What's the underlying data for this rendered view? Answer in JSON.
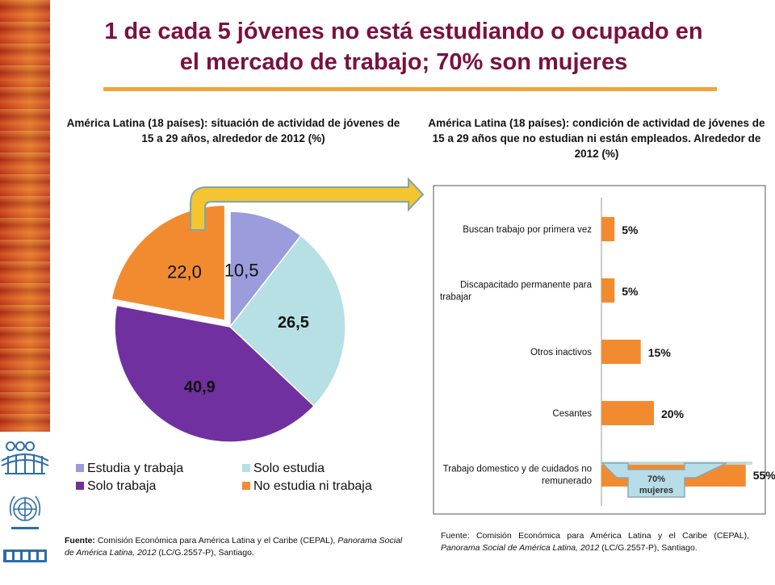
{
  "title_line1": "1 de cada 5 jóvenes no está estudiando o ocupado en",
  "title_line2": "el mercado de trabajo; 70% son mujeres",
  "colors": {
    "title": "#7b1040",
    "accent_rule": "#f3a23e",
    "pie_estudia_trabaja": "#9b9cdc",
    "pie_solo_estudia": "#b7e0e4",
    "pie_solo_trabaja": "#7030a0",
    "pie_no_estudia_ni_trabaja": "#f28b30",
    "bars": "#f28b30",
    "arrow": "#f4c431",
    "badge": "#b7dde8"
  },
  "left_subtitle": "América Latina (18 países): situación de actividad de jóvenes de 15 a 29 años, alrededor de 2012 (%)",
  "right_subtitle": "América Latina (18 países): condición de actividad de jóvenes de 15 a 29 años que no estudian ni están empleados. Alrededor de 2012  (%)",
  "badge_line1": "70%",
  "badge_line2": "mujeres",
  "left_source": {
    "label": "Fuente:",
    "text1": " Comisión Económica para América Latina y el Caribe (CEPAL), ",
    "italic": "Panorama Social de América Latina, 2012",
    "text2": " (LC/G.2557-P), Santiago."
  },
  "right_source": {
    "text1": "Fuente: Comisión Económica para América Latina y el Caribe (CEPAL), ",
    "italic": "Panorama Social de América Latina, 2012",
    "text2": " (LC/G.2557-P), Santiago."
  },
  "chart_data": [
    {
      "type": "pie",
      "labels": [
        "Estudia y trabaja",
        "Solo estudia",
        "Solo trabaja",
        "No estudia ni trabaja"
      ],
      "values": [
        10.5,
        26.5,
        40.9,
        22.0
      ],
      "value_labels": [
        "10,5",
        "26,5",
        "40,9",
        "22,0"
      ],
      "exploded": "No estudia ni trabaja",
      "legend_position": "bottom"
    },
    {
      "type": "bar",
      "orientation": "horizontal",
      "categories": [
        "Buscan trabajo por primera vez",
        "Discapacitado permanente para trabajar",
        "Otros inactivos",
        "Cesantes",
        "Trabajo domestico y de cuidados no remunerado"
      ],
      "values": [
        5,
        5,
        15,
        20,
        55
      ],
      "value_labels": [
        "5%",
        "5%",
        "15%",
        "20%",
        "55%"
      ],
      "grid": false
    }
  ]
}
